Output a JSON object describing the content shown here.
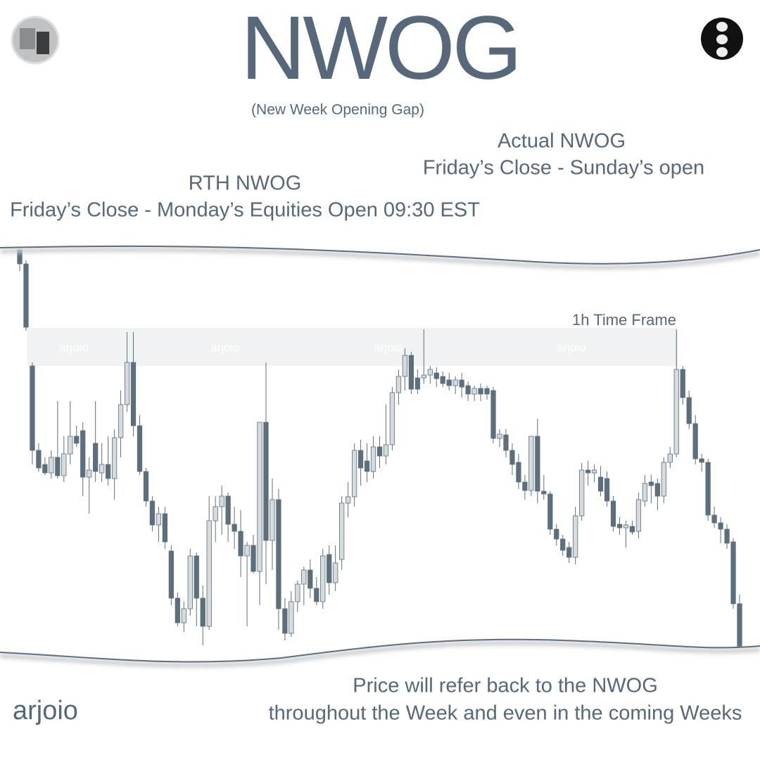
{
  "header": {
    "title": "NWOG",
    "subtitle": "(New Week Opening Gap)"
  },
  "annotations": {
    "actual_title": "Actual NWOG",
    "actual_text": "Friday’s Close - Sunday’s open",
    "rth_title": "RTH NWOG",
    "rth_text": "Friday’s Close - Monday’s Equities Open 09:30 EST"
  },
  "footer": {
    "brand": "arjoio",
    "line1": "Price will refer back to the NWOG",
    "line2": "throughout the Week and even in the coming Weeks"
  },
  "chart_data": {
    "type": "candlestick",
    "timeframe_label": "1h Time Frame",
    "up_color": "#d6dbe0",
    "down_color": "#5d6f7c",
    "zone_color": "#f1f2f3",
    "ylim": [
      0,
      565
    ],
    "nwog_zone": [
      400,
      454
    ],
    "watermarks": [
      "arjoio",
      "arjoio",
      "arjoio",
      "arjoio"
    ],
    "ohlc": [
      [
        565,
        565,
        535,
        545
      ],
      [
        545,
        550,
        450,
        455
      ],
      [
        400,
        405,
        260,
        280
      ],
      [
        280,
        290,
        250,
        255
      ],
      [
        260,
        270,
        245,
        248
      ],
      [
        248,
        280,
        240,
        270
      ],
      [
        270,
        350,
        240,
        244
      ],
      [
        244,
        300,
        235,
        275
      ],
      [
        275,
        350,
        260,
        300
      ],
      [
        300,
        315,
        285,
        290
      ],
      [
        308,
        320,
        215,
        242
      ],
      [
        242,
        270,
        190,
        252
      ],
      [
        290,
        350,
        235,
        250
      ],
      [
        248,
        290,
        235,
        260
      ],
      [
        260,
        300,
        230,
        240
      ],
      [
        240,
        310,
        210,
        298
      ],
      [
        298,
        365,
        270,
        345
      ],
      [
        345,
        448,
        335,
        405
      ],
      [
        405,
        448,
        300,
        315
      ],
      [
        315,
        330,
        245,
        250
      ],
      [
        250,
        255,
        200,
        208
      ],
      [
        208,
        215,
        165,
        174
      ],
      [
        174,
        200,
        150,
        190
      ],
      [
        190,
        200,
        140,
        150
      ],
      [
        137,
        145,
        60,
        70
      ],
      [
        70,
        78,
        30,
        35
      ],
      [
        35,
        65,
        22,
        55
      ],
      [
        55,
        140,
        45,
        130
      ],
      [
        130,
        135,
        30,
        70
      ],
      [
        70,
        88,
        3,
        30
      ],
      [
        30,
        215,
        25,
        180
      ],
      [
        180,
        215,
        150,
        200
      ],
      [
        200,
        230,
        160,
        215
      ],
      [
        215,
        220,
        150,
        175
      ],
      [
        175,
        200,
        140,
        165
      ],
      [
        165,
        195,
        100,
        130
      ],
      [
        130,
        150,
        30,
        145
      ],
      [
        145,
        160,
        105,
        108
      ],
      [
        108,
        320,
        60,
        320
      ],
      [
        320,
        405,
        90,
        152
      ],
      [
        152,
        240,
        110,
        210
      ],
      [
        210,
        225,
        25,
        55
      ],
      [
        55,
        70,
        10,
        20
      ],
      [
        20,
        80,
        15,
        65
      ],
      [
        65,
        95,
        50,
        90
      ],
      [
        90,
        115,
        60,
        110
      ],
      [
        110,
        125,
        70,
        84
      ],
      [
        84,
        100,
        60,
        65
      ],
      [
        65,
        140,
        55,
        130
      ],
      [
        132,
        145,
        75,
        92
      ],
      [
        92,
        145,
        80,
        120
      ],
      [
        125,
        215,
        110,
        205
      ],
      [
        205,
        235,
        185,
        214
      ],
      [
        214,
        290,
        200,
        280
      ],
      [
        280,
        295,
        230,
        255
      ],
      [
        265,
        290,
        235,
        250
      ],
      [
        250,
        300,
        240,
        285
      ],
      [
        285,
        300,
        255,
        272
      ],
      [
        272,
        345,
        260,
        288
      ],
      [
        288,
        370,
        280,
        362
      ],
      [
        362,
        395,
        345,
        385
      ],
      [
        385,
        425,
        365,
        415
      ],
      [
        415,
        420,
        360,
        367
      ],
      [
        383,
        395,
        360,
        367
      ],
      [
        383,
        452,
        375,
        387
      ],
      [
        387,
        400,
        375,
        395
      ],
      [
        390,
        398,
        370,
        382
      ],
      [
        385,
        392,
        370,
        375
      ],
      [
        380,
        390,
        365,
        372
      ],
      [
        372,
        385,
        360,
        380
      ],
      [
        380,
        390,
        355,
        370
      ],
      [
        372,
        378,
        350,
        360
      ],
      [
        360,
        372,
        350,
        368
      ],
      [
        368,
        375,
        350,
        360
      ],
      [
        368,
        372,
        352,
        360
      ],
      [
        365,
        370,
        290,
        297
      ],
      [
        297,
        310,
        285,
        303
      ],
      [
        302,
        310,
        270,
        280
      ],
      [
        280,
        290,
        245,
        260
      ],
      [
        263,
        275,
        225,
        235
      ],
      [
        235,
        245,
        210,
        223
      ],
      [
        223,
        300,
        215,
        300
      ],
      [
        300,
        325,
        205,
        222
      ],
      [
        222,
        245,
        210,
        218
      ],
      [
        218,
        222,
        160,
        168
      ],
      [
        168,
        175,
        145,
        154
      ],
      [
        154,
        160,
        130,
        138
      ],
      [
        142,
        150,
        120,
        128
      ],
      [
        128,
        200,
        118,
        187
      ],
      [
        187,
        262,
        180,
        252
      ],
      [
        252,
        265,
        230,
        248
      ],
      [
        248,
        260,
        235,
        252
      ],
      [
        242,
        258,
        215,
        222
      ],
      [
        240,
        250,
        200,
        208
      ],
      [
        208,
        215,
        165,
        172
      ],
      [
        175,
        185,
        160,
        170
      ],
      [
        170,
        180,
        142,
        174
      ],
      [
        172,
        180,
        160,
        164
      ],
      [
        165,
        220,
        155,
        210
      ],
      [
        208,
        245,
        200,
        233
      ],
      [
        235,
        245,
        205,
        230
      ],
      [
        233,
        240,
        195,
        215
      ],
      [
        215,
        270,
        205,
        263
      ],
      [
        263,
        285,
        255,
        275
      ],
      [
        275,
        452,
        270,
        395
      ],
      [
        395,
        400,
        345,
        355
      ],
      [
        355,
        365,
        310,
        318
      ],
      [
        318,
        330,
        260,
        268
      ],
      [
        268,
        275,
        250,
        263
      ],
      [
        263,
        268,
        180,
        188
      ],
      [
        188,
        200,
        170,
        177
      ],
      [
        177,
        185,
        148,
        168
      ],
      [
        168,
        175,
        140,
        148
      ],
      [
        150,
        155,
        55,
        62
      ],
      [
        62,
        75,
        0,
        0
      ]
    ]
  }
}
